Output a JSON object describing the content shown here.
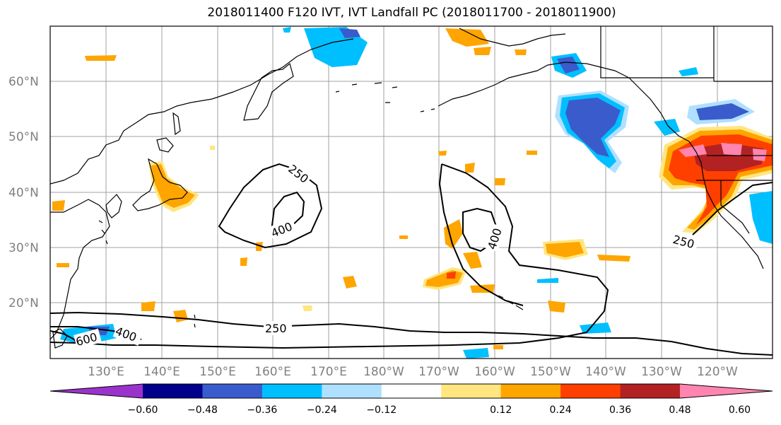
{
  "title": "2018011400 F120 IVT, IVT Landfall PC (2018011700 - 2018011900)",
  "lat_labels": [
    "60°N",
    "50°N",
    "40°N",
    "30°N",
    "20°N"
  ],
  "lon_labels": [
    "130°E",
    "140°E",
    "150°E",
    "160°E",
    "170°E",
    "180°W",
    "170°W",
    "160°W",
    "150°W",
    "140°W",
    "130°W",
    "120°W"
  ],
  "contour_labels": [
    "250",
    "400",
    "400",
    "250",
    "250",
    "400",
    "600"
  ],
  "colorbar": {
    "ticks": [
      "−0.60",
      "−0.48",
      "−0.36",
      "−0.24",
      "−0.12",
      "0.12",
      "0.24",
      "0.36",
      "0.48",
      "0.60"
    ],
    "colors": [
      "#9a33cc",
      "#00008b",
      "#3a5bcc",
      "#00bfff",
      "#b0e0ff",
      "#ffffff",
      "#ffe680",
      "#ffa500",
      "#ff3f00",
      "#b22222",
      "#ff85b0"
    ]
  }
}
